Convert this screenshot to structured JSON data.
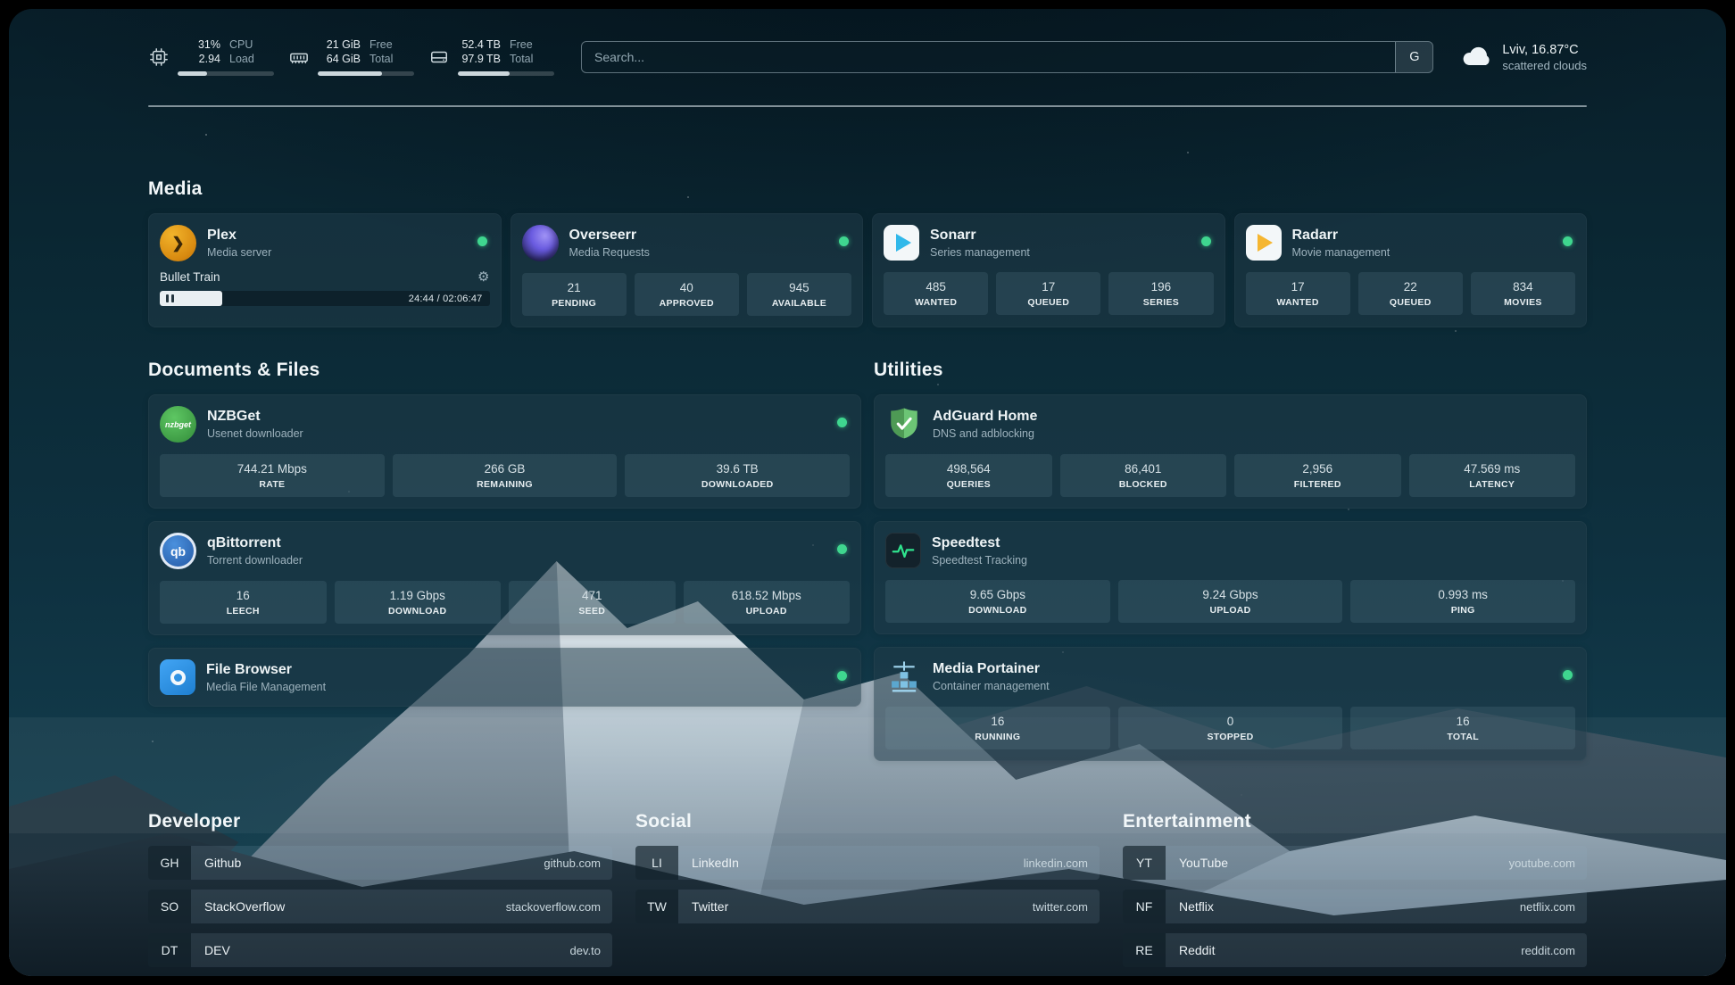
{
  "colors": {
    "status_online": "#3fd68f",
    "progress_fill": "#e9eff2",
    "search_border": "#a5b9c3"
  },
  "icons": {
    "settings_gear": "⚙"
  },
  "header": {
    "cpu": {
      "value1": "31%",
      "value2": "2.94",
      "label1": "CPU",
      "label2": "Load",
      "bar_percent": 31
    },
    "ram": {
      "value1": "21 GiB",
      "value2": "64 GiB",
      "label1": "Free",
      "label2": "Total",
      "bar_percent": 67
    },
    "disk": {
      "value1": "52.4 TB",
      "value2": "97.9 TB",
      "label1": "Free",
      "label2": "Total",
      "bar_percent": 54
    },
    "search": {
      "placeholder": "Search...",
      "provider_button": "G"
    },
    "weather": {
      "location": "Lviv, 16.87°C",
      "condition": "scattered clouds"
    }
  },
  "media": {
    "title": "Media",
    "plex": {
      "name": "Plex",
      "subtitle": "Media server",
      "status": "online",
      "now_playing": "Bullet Train",
      "time": "24:44 / 02:06:47",
      "progress_percent": 19
    },
    "overseerr": {
      "name": "Overseerr",
      "subtitle": "Media Requests",
      "status": "online",
      "stats": [
        {
          "value": "21",
          "label": "PENDING"
        },
        {
          "value": "40",
          "label": "APPROVED"
        },
        {
          "value": "945",
          "label": "AVAILABLE"
        }
      ]
    },
    "sonarr": {
      "name": "Sonarr",
      "subtitle": "Series management",
      "status": "online",
      "stats": [
        {
          "value": "485",
          "label": "WANTED"
        },
        {
          "value": "17",
          "label": "QUEUED"
        },
        {
          "value": "196",
          "label": "SERIES"
        }
      ]
    },
    "radarr": {
      "name": "Radarr",
      "subtitle": "Movie management",
      "status": "online",
      "stats": [
        {
          "value": "17",
          "label": "WANTED"
        },
        {
          "value": "22",
          "label": "QUEUED"
        },
        {
          "value": "834",
          "label": "MOVIES"
        }
      ]
    }
  },
  "documents": {
    "title": "Documents & Files",
    "nzbget": {
      "name": "NZBGet",
      "subtitle": "Usenet downloader",
      "status": "online",
      "icon_text": "nzbget",
      "stats": [
        {
          "value": "744.21 Mbps",
          "label": "RATE"
        },
        {
          "value": "266 GB",
          "label": "REMAINING"
        },
        {
          "value": "39.6 TB",
          "label": "DOWNLOADED"
        }
      ]
    },
    "qbittorrent": {
      "name": "qBittorrent",
      "subtitle": "Torrent downloader",
      "status": "online",
      "icon_text": "qb",
      "stats": [
        {
          "value": "16",
          "label": "LEECH"
        },
        {
          "value": "1.19 Gbps",
          "label": "DOWNLOAD"
        },
        {
          "value": "471",
          "label": "SEED"
        },
        {
          "value": "618.52 Mbps",
          "label": "UPLOAD"
        }
      ]
    },
    "filebrowser": {
      "name": "File Browser",
      "subtitle": "Media File Management",
      "status": "online"
    }
  },
  "utilities": {
    "title": "Utilities",
    "adguard": {
      "name": "AdGuard Home",
      "subtitle": "DNS and adblocking",
      "stats": [
        {
          "value": "498,564",
          "label": "QUERIES"
        },
        {
          "value": "86,401",
          "label": "BLOCKED"
        },
        {
          "value": "2,956",
          "label": "FILTERED"
        },
        {
          "value": "47.569 ms",
          "label": "LATENCY"
        }
      ]
    },
    "speedtest": {
      "name": "Speedtest",
      "subtitle": "Speedtest Tracking",
      "stats": [
        {
          "value": "9.65 Gbps",
          "label": "DOWNLOAD"
        },
        {
          "value": "9.24 Gbps",
          "label": "UPLOAD"
        },
        {
          "value": "0.993 ms",
          "label": "PING"
        }
      ]
    },
    "portainer": {
      "name": "Media Portainer",
      "subtitle": "Container management",
      "status": "online",
      "stats": [
        {
          "value": "16",
          "label": "RUNNING"
        },
        {
          "value": "0",
          "label": "STOPPED"
        },
        {
          "value": "16",
          "label": "TOTAL"
        }
      ]
    }
  },
  "bookmarks": [
    {
      "title": "Developer",
      "items": [
        {
          "abbr": "GH",
          "name": "Github",
          "url": "github.com"
        },
        {
          "abbr": "SO",
          "name": "StackOverflow",
          "url": "stackoverflow.com"
        },
        {
          "abbr": "DT",
          "name": "DEV",
          "url": "dev.to"
        }
      ]
    },
    {
      "title": "Social",
      "items": [
        {
          "abbr": "LI",
          "name": "LinkedIn",
          "url": "linkedin.com"
        },
        {
          "abbr": "TW",
          "name": "Twitter",
          "url": "twitter.com"
        }
      ]
    },
    {
      "title": "Entertainment",
      "items": [
        {
          "abbr": "YT",
          "name": "YouTube",
          "url": "youtube.com"
        },
        {
          "abbr": "NF",
          "name": "Netflix",
          "url": "netflix.com"
        },
        {
          "abbr": "RE",
          "name": "Reddit",
          "url": "reddit.com"
        }
      ]
    }
  ]
}
